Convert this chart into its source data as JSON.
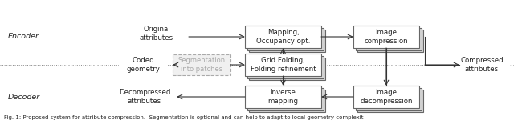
{
  "figsize": [
    6.4,
    1.55
  ],
  "dpi": 100,
  "bg_color": "#ffffff",
  "box_fc": "#ffffff",
  "box_ec": "#666666",
  "shadow_fc": "#d8d8d8",
  "seg_fc": "#eeeeee",
  "seg_ec": "#aaaaaa",
  "seg_tc": "#aaaaaa",
  "arrow_color": "#333333",
  "dot_color": "#888888",
  "text_color": "#222222",
  "label_color": "#222222",
  "encoder_label": "Encoder",
  "decoder_label": "Decoder",
  "box1_text": "Mapping,\nOccupancy opt.",
  "box2_text": "Image\ncompression",
  "box3_text": "Grid Folding,\nFolding refinement",
  "box4_text": "Inverse\nmapping",
  "box5_text": "Image\ndecompression",
  "seg_text": "Segmentation\ninto patches",
  "orig_attr": "Original\nattributes",
  "coded_geom": "Coded\ngeometry",
  "decomp_attr": "Decompressed\nattributes",
  "comp_attr": "Compressed\nattributes",
  "caption": "Fig. 1: Proposed system for attribute compression.  Segmentation is optional and can help to adapt to local geometry complexit"
}
